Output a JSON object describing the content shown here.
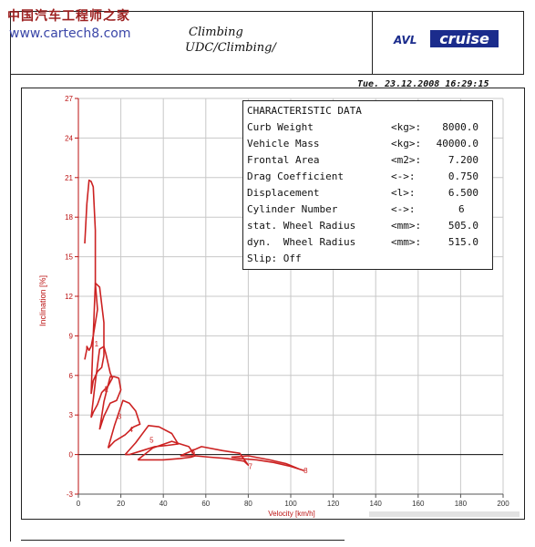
{
  "watermark": {
    "line1": "中国汽车工程师之家",
    "line2": "www.cartech8.com"
  },
  "header": {
    "title_line1": "Climbing",
    "title_line2": "UDC/Climbing/"
  },
  "logo": {
    "avl": "AVL",
    "cruise": "cruise",
    "color": "#1b2c8c"
  },
  "timestamp": "Tue. 23.12.2008 16:29:15",
  "characteristic_data": {
    "title": "CHARACTERISTIC DATA",
    "rows": [
      {
        "label": "Curb Weight",
        "unit": "<kg>:",
        "value": "8000.0"
      },
      {
        "label": "Vehicle Mass",
        "unit": "<kg>:",
        "value": "40000.0"
      },
      {
        "label": "Frontal Area",
        "unit": "<m2>:",
        "value": "7.200"
      },
      {
        "label": "Drag Coefficient",
        "unit": "<->:",
        "value": "0.750"
      },
      {
        "label": "Displacement",
        "unit": "<l>:",
        "value": "6.500"
      },
      {
        "label": "Cylinder Number",
        "unit": "<->:",
        "value": "6"
      },
      {
        "label": "stat. Wheel Radius",
        "unit": "<mm>:",
        "value": "505.0"
      },
      {
        "label": "dyn.  Wheel Radius",
        "unit": "<mm>:",
        "value": "515.0"
      },
      {
        "label": "Slip: Off",
        "unit": "",
        "value": ""
      }
    ]
  },
  "chart_data": {
    "type": "line",
    "xlabel": "Velocity [km/h]",
    "ylabel": "Inclination [%]",
    "xlim": [
      0,
      200
    ],
    "ylim": [
      -3,
      27
    ],
    "xticks": [
      0,
      20,
      40,
      60,
      80,
      100,
      120,
      140,
      160,
      180,
      200
    ],
    "yticks": [
      -3,
      0,
      3,
      6,
      9,
      12,
      15,
      18,
      21,
      24,
      27
    ],
    "grid": true,
    "series_color": "#cc2222",
    "axis_color": "#bb1111",
    "series": [
      {
        "name": "1",
        "x": [
          3,
          4,
          5,
          6,
          7,
          8,
          8,
          9,
          7,
          6,
          5,
          4,
          4,
          3
        ],
        "y": [
          16,
          19,
          20.8,
          20.7,
          20.3,
          17,
          13,
          11,
          9,
          8.2,
          7.9,
          8.2,
          8,
          7.2
        ]
      },
      {
        "name": "1",
        "x": [
          6,
          7,
          8,
          10,
          12,
          12,
          11,
          9,
          7,
          6
        ],
        "y": [
          4.6,
          9,
          13,
          12.7,
          10,
          7.5,
          6.6,
          6.3,
          5.6,
          4.6
        ]
      },
      {
        "name": "2",
        "x": [
          6,
          8,
          10,
          12,
          13,
          15,
          16,
          14,
          11,
          9,
          7,
          6
        ],
        "y": [
          2.8,
          5.5,
          8,
          8.2,
          7.6,
          6.2,
          5.8,
          5.2,
          4.7,
          3.8,
          3.2,
          2.8
        ]
      },
      {
        "name": "3",
        "x": [
          10,
          12,
          15,
          17,
          19,
          20,
          18,
          15,
          12,
          10
        ],
        "y": [
          1.9,
          4,
          5.9,
          5.9,
          5.8,
          4.9,
          4.1,
          3.9,
          2.9,
          1.9
        ]
      },
      {
        "name": "4",
        "x": [
          14,
          17,
          21,
          24,
          27,
          29,
          26,
          22,
          17,
          14
        ],
        "y": [
          0.5,
          2.2,
          4.1,
          3.9,
          3.3,
          2.3,
          2.1,
          1.5,
          1,
          0.5
        ]
      },
      {
        "name": "5",
        "x": [
          22,
          27,
          33,
          38,
          44,
          47,
          42,
          36,
          30,
          24,
          22
        ],
        "y": [
          0,
          0.9,
          2.2,
          2.1,
          1.6,
          0.8,
          0.7,
          0.6,
          0.3,
          0,
          0
        ]
      },
      {
        "name": "6",
        "x": [
          28,
          35,
          44,
          52,
          55,
          53,
          48,
          40,
          33,
          28
        ],
        "y": [
          -0.4,
          0.5,
          1,
          0.6,
          -0.1,
          -0.2,
          -0.3,
          -0.4,
          -0.4,
          -0.4
        ]
      },
      {
        "name": "7",
        "x": [
          48,
          58,
          68,
          76,
          80,
          78,
          70,
          62,
          55,
          48
        ],
        "y": [
          -0.1,
          0.6,
          0.3,
          0.1,
          -0.8,
          -0.5,
          -0.3,
          -0.2,
          -0.1,
          -0.1
        ]
      },
      {
        "name": "8",
        "x": [
          72,
          80,
          90,
          98,
          104,
          106,
          100,
          92,
          84,
          76,
          72
        ],
        "y": [
          -0.2,
          -0.1,
          -0.4,
          -0.7,
          -1.1,
          -1.2,
          -0.9,
          -0.6,
          -0.4,
          -0.3,
          -0.2
        ]
      }
    ],
    "gear_labels": [
      {
        "text": "1",
        "x": 8.5,
        "y": 8.4
      },
      {
        "text": "2",
        "x": 13.2,
        "y": 5.0
      },
      {
        "text": "3",
        "x": 19.3,
        "y": 2.9
      },
      {
        "text": "4",
        "x": 24.8,
        "y": 1.9
      },
      {
        "text": "5",
        "x": 34.5,
        "y": 1.1
      },
      {
        "text": "6",
        "x": 54,
        "y": 0.2
      },
      {
        "text": "7",
        "x": 81,
        "y": -0.9
      },
      {
        "text": "8",
        "x": 107,
        "y": -1.2
      }
    ]
  }
}
